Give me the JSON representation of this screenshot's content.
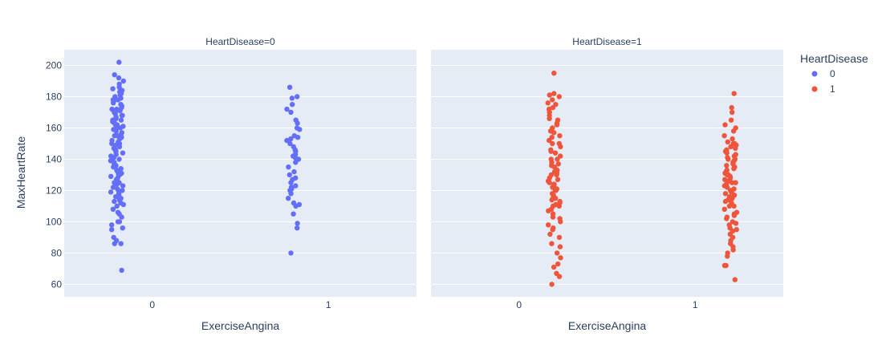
{
  "chart_data": {
    "type": "scatter",
    "subtype": "strip",
    "facets": [
      {
        "title": "HeartDisease=0",
        "series": "0",
        "categories": [
          "0",
          "1"
        ],
        "points": [
          {
            "x": "0",
            "y": [
              202,
              194,
              192,
              190,
              188,
              186,
              185,
              184,
              183,
              182,
              181,
              180,
              179,
              178,
              178,
              177,
              176,
              175,
              174,
              173,
              172,
              172,
              171,
              170,
              170,
              169,
              168,
              168,
              167,
              166,
              165,
              165,
              164,
              163,
              162,
              162,
              161,
              160,
              160,
              159,
              158,
              157,
              156,
              155,
              155,
              154,
              153,
              152,
              151,
              150,
              150,
              149,
              148,
              147,
              146,
              145,
              145,
              144,
              143,
              142,
              141,
              140,
              140,
              139,
              138,
              137,
              136,
              135,
              134,
              133,
              132,
              131,
              130,
              130,
              129,
              128,
              127,
              126,
              125,
              125,
              124,
              123,
              122,
              121,
              120,
              120,
              119,
              118,
              117,
              116,
              115,
              114,
              113,
              112,
              111,
              110,
              108,
              106,
              105,
              103,
              100,
              100,
              98,
              96,
              95,
              90,
              88,
              86,
              86,
              69
            ]
          },
          {
            "x": "1",
            "y": [
              186,
              180,
              179,
              175,
              172,
              170,
              165,
              163,
              160,
              159,
              155,
              154,
              153,
              152,
              150,
              148,
              146,
              145,
              143,
              142,
              141,
              140,
              138,
              135,
              132,
              130,
              128,
              127,
              125,
              123,
              122,
              121,
              120,
              118,
              115,
              112,
              111,
              110,
              105,
              99,
              96,
              80
            ]
          }
        ]
      },
      {
        "title": "HeartDisease=1",
        "series": "1",
        "categories": [
          "0",
          "1"
        ],
        "points": [
          {
            "x": "0",
            "y": [
              195,
              182,
              181,
              180,
              178,
              176,
              175,
              173,
              172,
              170,
              168,
              166,
              165,
              163,
              162,
              160,
              158,
              157,
              155,
              154,
              152,
              150,
              150,
              148,
              146,
              145,
              144,
              142,
              140,
              140,
              138,
              137,
              136,
              135,
              133,
              132,
              131,
              130,
              130,
              128,
              127,
              126,
              125,
              124,
              123,
              122,
              121,
              120,
              120,
              118,
              117,
              116,
              115,
              114,
              113,
              112,
              111,
              110,
              110,
              108,
              107,
              105,
              103,
              102,
              100,
              98,
              96,
              95,
              92,
              90,
              86,
              84,
              80,
              77,
              73,
              71,
              67,
              65,
              60
            ]
          },
          {
            "x": "1",
            "y": [
              182,
              173,
              170,
              165,
              162,
              160,
              158,
              155,
              153,
              151,
              150,
              150,
              149,
              148,
              147,
              146,
              145,
              144,
              143,
              142,
              141,
              140,
              140,
              139,
              138,
              137,
              136,
              135,
              135,
              134,
              133,
              132,
              131,
              130,
              130,
              129,
              128,
              127,
              126,
              125,
              125,
              124,
              123,
              122,
              121,
              120,
              120,
              119,
              118,
              117,
              116,
              115,
              115,
              114,
              113,
              112,
              111,
              110,
              110,
              108,
              106,
              105,
              104,
              103,
              102,
              100,
              99,
              98,
              96,
              95,
              94,
              92,
              90,
              88,
              86,
              84,
              82,
              80,
              78,
              72,
              72,
              63
            ]
          }
        ]
      }
    ],
    "xlabel": "ExerciseAngina",
    "ylabel": "MaxHeartRate",
    "yticks": [
      60,
      80,
      100,
      120,
      140,
      160,
      180,
      200
    ],
    "ylim": [
      52,
      210
    ],
    "grid": true,
    "legend": {
      "title": "HeartDisease",
      "placement": "top-right",
      "entries": [
        {
          "label": "0",
          "color": "#636efa"
        },
        {
          "label": "1",
          "color": "#ef553b"
        }
      ]
    },
    "colors": {
      "0": "#636efa",
      "1": "#ef553b"
    }
  }
}
